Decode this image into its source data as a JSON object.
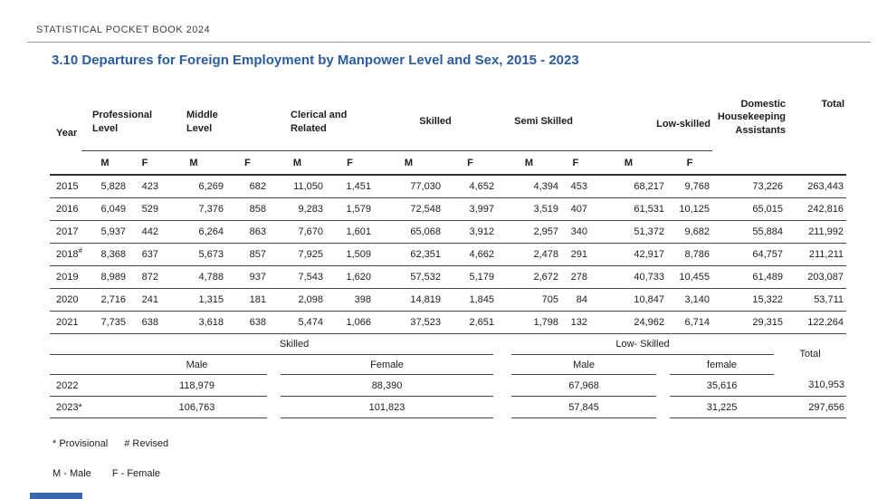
{
  "page": {
    "book_title": "STATISTICAL POCKET BOOK 2024",
    "section_title": "3.10 Departures for Foreign Employment by Manpower Level and Sex, 2015 - 2023"
  },
  "colors": {
    "accent_blue": "#2b5c9f",
    "accent_bar_blue": "#3a68ae"
  },
  "main_table": {
    "year_header": "Year",
    "sub_headers": [
      "M",
      "F"
    ],
    "groups": [
      {
        "label": "Professional Level",
        "lines": [
          "Professional",
          "Level"
        ],
        "align": "left"
      },
      {
        "label": "Middle Level",
        "lines": [
          "Middle",
          "Level"
        ],
        "align": "left"
      },
      {
        "label": "Clerical and Related",
        "lines": [
          "Clerical and",
          "Related"
        ],
        "align": "left"
      },
      {
        "label": "Skilled",
        "lines": [
          "Skilled"
        ],
        "align": "center"
      },
      {
        "label": "Semi Skilled",
        "lines": [
          "Semi Skilled"
        ],
        "align": "center"
      },
      {
        "label": "Low-skilled",
        "lines": [
          "Low-skilled"
        ],
        "align": "righttop"
      }
    ],
    "domestic_header": {
      "label": "Domestic Housekeeping Assistants",
      "lines": [
        "Domestic",
        "Housekeeping",
        "Assistants"
      ]
    },
    "total_header": "Total",
    "rows": [
      {
        "year": "2015",
        "values": [
          "5,828",
          "423",
          "6,269",
          "682",
          "11,050",
          "1,451",
          "77,030",
          "4,652",
          "4,394",
          "453",
          "68,217",
          "9,768",
          "73,226",
          "263,443"
        ]
      },
      {
        "year": "2016",
        "values": [
          "6,049",
          "529",
          "7,376",
          "858",
          "9,283",
          "1,579",
          "72,548",
          "3,997",
          "3,519",
          "407",
          "61,531",
          "10,125",
          "65,015",
          "242,816"
        ]
      },
      {
        "year": "2017",
        "values": [
          "5,937",
          "442",
          "6,264",
          "863",
          "7,670",
          "1,601",
          "65,068",
          "3,912",
          "2,957",
          "340",
          "51,372",
          "9,682",
          "55,884",
          "211,992"
        ]
      },
      {
        "year": "2018",
        "mark": "#",
        "values": [
          "8,368",
          "637",
          "5,673",
          "857",
          "7,925",
          "1,509",
          "62,351",
          "4,662",
          "2,478",
          "291",
          "42,917",
          "8,786",
          "64,757",
          "211,211"
        ]
      },
      {
        "year": "2019",
        "values": [
          "8,989",
          "872",
          "4,788",
          "937",
          "7,543",
          "1,620",
          "57,532",
          "5,179",
          "2,672",
          "278",
          "40,733",
          "10,455",
          "61,489",
          "203,087"
        ]
      },
      {
        "year": "2020",
        "values": [
          "2,716",
          "241",
          "1,315",
          "181",
          "2,098",
          "398",
          "14,819",
          "1,845",
          "705",
          "84",
          "10,847",
          "3,140",
          "15,322",
          "53,711"
        ]
      },
      {
        "year": "2021",
        "values": [
          "7,735",
          "638",
          "3,618",
          "638",
          "5,474",
          "1,066",
          "37,523",
          "2,651",
          "1,798",
          "132",
          "24,962",
          "6,714",
          "29,315",
          "122,264"
        ]
      }
    ]
  },
  "secondary_table": {
    "groups": [
      {
        "label": "Skilled",
        "cols": [
          "Male",
          "Female"
        ]
      },
      {
        "label": "Low- Skilled",
        "cols": [
          "Male",
          "female"
        ]
      }
    ],
    "total_header": "Total",
    "rows": [
      {
        "year": "2022",
        "values": [
          "118,979",
          "88,390",
          "67,968",
          "35,616",
          "310,953"
        ]
      },
      {
        "year": "2023*",
        "values": [
          "106,763",
          "101,823",
          "57,845",
          "31,225",
          "297,656"
        ]
      }
    ]
  },
  "footnotes": {
    "provisional": "* Provisional",
    "revised": "# Revised",
    "legend_male": "M -  Male",
    "legend_female": "F -  Female"
  }
}
